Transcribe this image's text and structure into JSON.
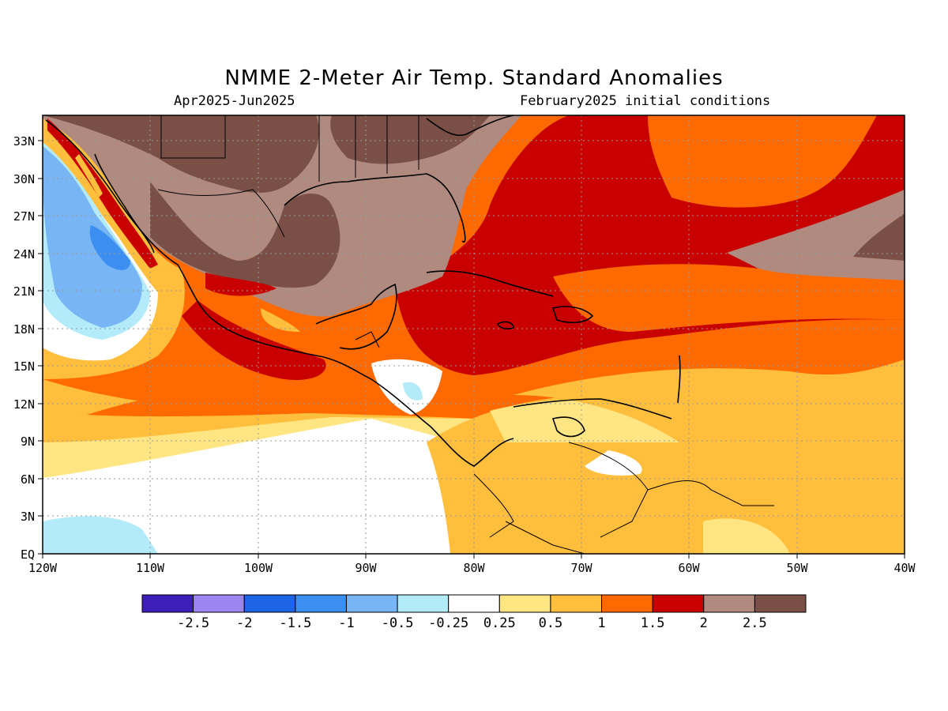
{
  "title": "NMME 2-Meter Air Temp. Standard Anomalies",
  "period": "Apr2025-Jun2025",
  "initial_conditions": "February2025 initial conditions",
  "map": {
    "lon_ticks": [
      "120W",
      "110W",
      "100W",
      "90W",
      "80W",
      "70W",
      "60W",
      "50W",
      "40W"
    ],
    "lat_ticks": [
      "EQ",
      "3N",
      "6N",
      "9N",
      "12N",
      "15N",
      "18N",
      "21N",
      "24N",
      "27N",
      "30N",
      "33N"
    ],
    "lon_range": [
      -120,
      -40
    ],
    "lat_range": [
      0,
      35
    ],
    "grid": "dotted"
  },
  "legend": {
    "colors": [
      "#3d1fb8",
      "#9c85f2",
      "#1e64e6",
      "#3c8ff0",
      "#78b5f5",
      "#b4ebfa",
      "#ffffff",
      "#ffe682",
      "#ffbe3c",
      "#ff6a00",
      "#c80000",
      "#b08a7e",
      "#7a5046"
    ],
    "labels": [
      "-2.5",
      "-2",
      "-1.5",
      "-1",
      "-0.5",
      "-0.25",
      "0.25",
      "0.5",
      "1",
      "1.5",
      "2",
      "2.5"
    ]
  }
}
